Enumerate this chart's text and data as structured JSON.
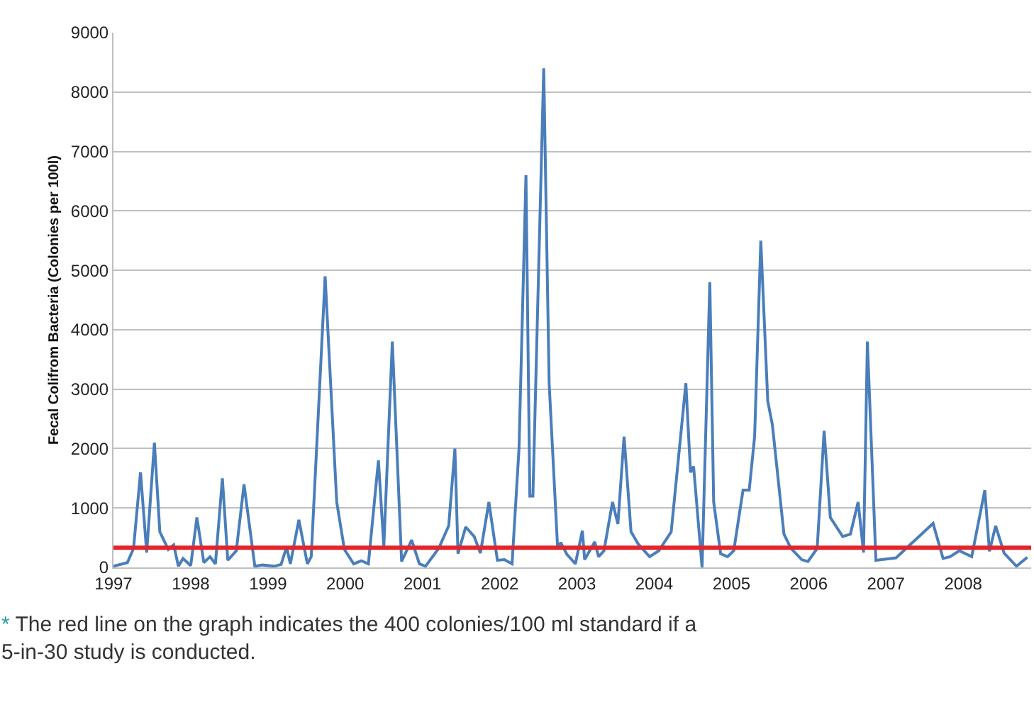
{
  "chart_data": {
    "type": "line",
    "ylabel": "Fecal Colifrom Bacteria (Colonies per 100l)",
    "x": [
      1997.0,
      1997.18,
      1997.26,
      1997.35,
      1997.43,
      1997.53,
      1997.6,
      1997.71,
      1997.78,
      1997.84,
      1997.9,
      1998.0,
      1998.08,
      1998.17,
      1998.25,
      1998.32,
      1998.41,
      1998.48,
      1998.59,
      1998.69,
      1998.83,
      1998.93,
      1999.08,
      1999.17,
      1999.24,
      1999.29,
      1999.4,
      1999.51,
      1999.56,
      1999.74,
      1999.89,
      1999.99,
      2000.11,
      2000.21,
      2000.3,
      2000.43,
      2000.5,
      2000.61,
      2000.73,
      2000.86,
      2000.96,
      2001.04,
      2001.21,
      2001.34,
      2001.42,
      2001.46,
      2001.56,
      2001.67,
      2001.75,
      2001.86,
      2001.97,
      2002.06,
      2002.16,
      2002.25,
      2002.34,
      2002.39,
      2002.43,
      2002.57,
      2002.64,
      2002.75,
      2002.79,
      2002.87,
      2002.98,
      2003.07,
      2003.1,
      2003.23,
      2003.28,
      2003.35,
      2003.46,
      2003.53,
      2003.61,
      2003.7,
      2003.79,
      2003.94,
      2004.06,
      2004.22,
      2004.41,
      2004.47,
      2004.51,
      2004.62,
      2004.72,
      2004.77,
      2004.86,
      2004.95,
      2005.03,
      2005.15,
      2005.23,
      2005.3,
      2005.38,
      2005.47,
      2005.53,
      2005.68,
      2005.77,
      2005.91,
      2005.99,
      2006.11,
      2006.2,
      2006.28,
      2006.44,
      2006.54,
      2006.64,
      2006.71,
      2006.76,
      2006.87,
      2007.13,
      2007.32,
      2007.61,
      2007.74,
      2007.83,
      2007.95,
      2008.11,
      2008.28,
      2008.34,
      2008.42,
      2008.53,
      2008.69,
      2008.83
    ],
    "series": [
      {
        "color": "#4a7ebb",
        "values": [
          20,
          80,
          320,
          1600,
          250,
          2100,
          600,
          300,
          380,
          20,
          150,
          30,
          840,
          80,
          180,
          60,
          1500,
          120,
          280,
          1400,
          20,
          40,
          20,
          50,
          340,
          60,
          800,
          60,
          180,
          4900,
          1100,
          300,
          60,
          110,
          60,
          1800,
          350,
          3800,
          100,
          460,
          60,
          20,
          320,
          700,
          2000,
          230,
          680,
          520,
          240,
          1100,
          120,
          130,
          60,
          2000,
          6600,
          1200,
          1200,
          8400,
          3100,
          320,
          420,
          220,
          60,
          620,
          130,
          430,
          180,
          280,
          1100,
          730,
          2200,
          600,
          400,
          180,
          280,
          600,
          3100,
          1600,
          1700,
          0,
          4800,
          1100,
          230,
          180,
          280,
          1300,
          1300,
          2200,
          5500,
          2800,
          2400,
          560,
          320,
          130,
          100,
          320,
          2300,
          840,
          520,
          560,
          1100,
          250,
          3800,
          120,
          160,
          390,
          740,
          150,
          180,
          280,
          180,
          1300,
          270,
          700,
          240,
          20,
          170
        ]
      }
    ],
    "xlim": [
      1997,
      2008.88
    ],
    "xticks": [
      1997,
      1998,
      1999,
      2000,
      2001,
      2002,
      2003,
      2004,
      2005,
      2006,
      2007,
      2008
    ],
    "ylim": [
      0,
      9000
    ],
    "yticks": [
      0,
      1000,
      2000,
      3000,
      4000,
      5000,
      6000,
      7000,
      8000,
      9000
    ],
    "grid": "y",
    "marker": "none",
    "line_style": "solid",
    "ref_lines": [
      {
        "axis": "y",
        "value": 330,
        "color": "#e3242b"
      }
    ],
    "annotations": [
      "* The red line on the graph indicates the 400 colonies/100 ml standard if a 5-in-30 study is conducted."
    ]
  }
}
